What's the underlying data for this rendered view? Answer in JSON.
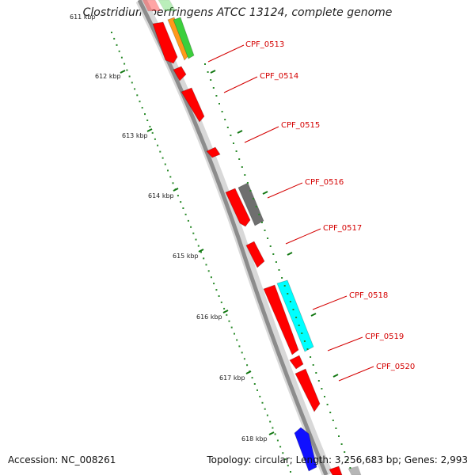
{
  "title": "Clostridium perfringens ATCC 13124, complete genome",
  "accession": "Accession: NC_008261",
  "summary": "Topology: circular; Length: 3,256,683 bp; Genes: 2,993",
  "kbp_labels": [
    "611 kbp",
    "612 kbp",
    "613 kbp",
    "614 kbp",
    "615 kbp",
    "616 kbp",
    "617 kbp",
    "618 kbp"
  ],
  "gene_labels": [
    "CPF_0513",
    "CPF_0514",
    "CPF_0515",
    "CPF_0516",
    "CPF_0517",
    "CPF_0518",
    "CPF_0519",
    "CPF_0520"
  ],
  "colors": {
    "backbone": "#8c8c8c",
    "gene_red": "#ff0000",
    "gene_label": "#d40000",
    "gene_gray": "#6f6f6f",
    "gene_cyan": "#00ffff",
    "gene_blue": "#1010ff",
    "gene_green": "#3ccf3c",
    "gene_orange": "#ff9a1a",
    "tick_green": "#117711",
    "dot_green": "#2a8a2a"
  }
}
